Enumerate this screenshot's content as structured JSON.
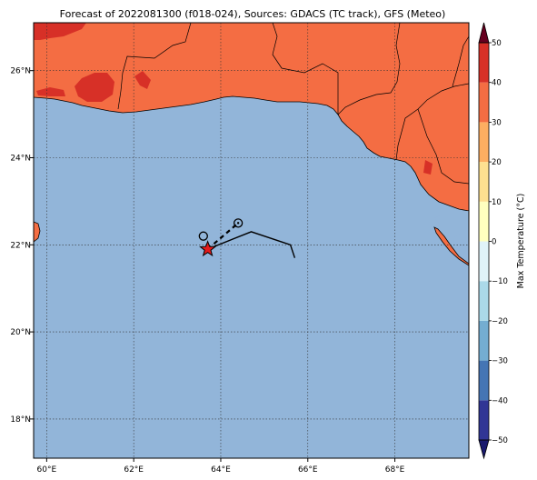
{
  "map": {
    "title": "Forecast of 2022081300 (f018-024), Sources: GDACS (TC track), GFS (Meteo)",
    "lon_range": [
      59.7,
      69.7
    ],
    "lat_range": [
      17.1,
      27.1
    ],
    "x_ticks": [
      {
        "value": 60,
        "label": "60°E"
      },
      {
        "value": 62,
        "label": "62°E"
      },
      {
        "value": 64,
        "label": "64°E"
      },
      {
        "value": 66,
        "label": "66°E"
      },
      {
        "value": 68,
        "label": "68°E"
      }
    ],
    "y_ticks": [
      {
        "value": 18,
        "label": "18°N"
      },
      {
        "value": 20,
        "label": "20°N"
      },
      {
        "value": 22,
        "label": "22°N"
      },
      {
        "value": 24,
        "label": "24°N"
      },
      {
        "value": 26,
        "label": "26°N"
      }
    ],
    "gridlines": true,
    "colors": {
      "sea": "#92b5d9",
      "land": "#f46d43",
      "land_hot": "#d73027",
      "border": "#000000"
    },
    "tc_track": {
      "solid": [
        [
          63.7,
          21.9
        ],
        [
          64.7,
          22.3
        ],
        [
          65.6,
          22.0
        ],
        [
          65.7,
          21.7
        ]
      ],
      "dashed": [
        [
          63.7,
          21.9
        ],
        [
          64.4,
          22.5
        ]
      ],
      "current_position": {
        "lon": 63.7,
        "lat": 21.9,
        "marker": "star-icon",
        "color": "#e41a1c"
      },
      "forecast_points": [
        {
          "lon": 63.6,
          "lat": 22.2,
          "marker": "circle"
        },
        {
          "lon": 64.4,
          "lat": 22.5,
          "marker": "circle-dot"
        }
      ]
    }
  },
  "colorbar": {
    "label": "Max Temperature (°C)",
    "min": -50,
    "max": 50,
    "levels": [
      -50,
      -40,
      -30,
      -20,
      -10,
      0,
      10,
      20,
      30,
      40,
      50
    ],
    "tick_labels": [
      "−50",
      "−40",
      "−30",
      "−20",
      "−10",
      "0",
      "10",
      "20",
      "30",
      "40",
      "50"
    ],
    "colors": [
      "#313695",
      "#4575b4",
      "#74add1",
      "#abd9e9",
      "#e0f3f8",
      "#ffffbf",
      "#fee090",
      "#fdae61",
      "#f46d43",
      "#d73027",
      "#a50026"
    ],
    "extend_min_color": "#1a1a6e",
    "extend_max_color": "#67001f"
  }
}
